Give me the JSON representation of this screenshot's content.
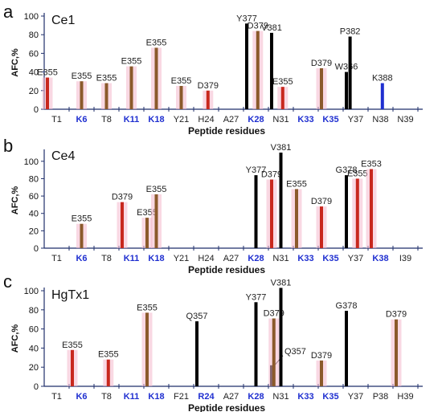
{
  "colors": {
    "brown": "#8b5a2b",
    "red": "#c8281e",
    "black": "#000000",
    "blue": "#1f2fd0",
    "glow": "#f4b8cc",
    "axis": "#1f2f6b",
    "text": "#222222"
  },
  "chart_data": [
    {
      "type": "bar",
      "panel_letter": "a",
      "panel_label": "Ce1",
      "ylabel": "AFC,%",
      "xlabel": "Peptide residues",
      "ylim": [
        0,
        100
      ],
      "yticks": [
        0,
        20,
        40,
        60,
        80,
        100
      ],
      "categories": [
        {
          "label": "T1",
          "lysine": false
        },
        {
          "label": "K6",
          "lysine": true
        },
        {
          "label": "T8",
          "lysine": false
        },
        {
          "label": "K11",
          "lysine": true
        },
        {
          "label": "K18",
          "lysine": true
        },
        {
          "label": "Y21",
          "lysine": false
        },
        {
          "label": "H24",
          "lysine": false
        },
        {
          "label": "A27",
          "lysine": false
        },
        {
          "label": "K28",
          "lysine": true
        },
        {
          "label": "N31",
          "lysine": false
        },
        {
          "label": "K33",
          "lysine": true
        },
        {
          "label": "K35",
          "lysine": true
        },
        {
          "label": "Y37",
          "lysine": false
        },
        {
          "label": "N38",
          "lysine": false
        },
        {
          "label": "N39",
          "lysine": false
        }
      ],
      "bars": [
        {
          "index": 0,
          "offset": 0,
          "value": 34,
          "label": "E355",
          "color": "red"
        },
        {
          "index": 1,
          "offset": 0.5,
          "value": 30,
          "label": "E355",
          "color": "brown"
        },
        {
          "index": 2,
          "offset": 0.5,
          "value": 28,
          "label": "E355",
          "color": "brown"
        },
        {
          "index": 3,
          "offset": 0.5,
          "value": 46,
          "label": "E355",
          "color": "brown"
        },
        {
          "index": 4,
          "offset": 0.5,
          "value": 66,
          "label": "E355",
          "color": "brown"
        },
        {
          "index": 5,
          "offset": 0.5,
          "value": 25,
          "label": "E355",
          "color": "brown"
        },
        {
          "index": 6,
          "offset": 0.6,
          "value": 20,
          "label": "D379",
          "color": "red"
        },
        {
          "index": 8,
          "offset": 0,
          "value": 92,
          "label": "Y377",
          "color": "black"
        },
        {
          "index": 8,
          "offset": 0.6,
          "value": 84,
          "label": "D379",
          "color": "brown"
        },
        {
          "index": 9,
          "offset": 0,
          "value": 82,
          "label": "V381",
          "color": "black"
        },
        {
          "index": 9,
          "offset": 0.6,
          "value": 24,
          "label": "E355",
          "color": "red"
        },
        {
          "index": 11,
          "offset": 0,
          "value": 44,
          "label": "D379",
          "color": "brown"
        },
        {
          "index": 12,
          "offset": 0,
          "value": 40,
          "label": "W366",
          "color": "black"
        },
        {
          "index": 12,
          "offset": 0.2,
          "value": 78,
          "label": "P382",
          "color": "black"
        },
        {
          "index": 13,
          "offset": 0.6,
          "value": 28,
          "label": "K388",
          "color": "blue"
        }
      ]
    },
    {
      "type": "bar",
      "panel_letter": "b",
      "panel_label": "Ce4",
      "ylabel": "AFC,%",
      "xlabel": "Peptide residues",
      "ylim": [
        0,
        110
      ],
      "yticks": [
        0,
        20,
        40,
        60,
        80,
        100
      ],
      "categories": [
        {
          "label": "T1",
          "lysine": false
        },
        {
          "label": "K6",
          "lysine": true
        },
        {
          "label": "T8",
          "lysine": false
        },
        {
          "label": "K11",
          "lysine": true
        },
        {
          "label": "K18",
          "lysine": true
        },
        {
          "label": "Y21",
          "lysine": false
        },
        {
          "label": "H24",
          "lysine": false
        },
        {
          "label": "A27",
          "lysine": false
        },
        {
          "label": "K28",
          "lysine": true
        },
        {
          "label": "N31",
          "lysine": false
        },
        {
          "label": "K33",
          "lysine": true
        },
        {
          "label": "K35",
          "lysine": true
        },
        {
          "label": "Y37",
          "lysine": false
        },
        {
          "label": "K38",
          "lysine": true
        },
        {
          "label": "I39",
          "lysine": false
        }
      ],
      "bars": [
        {
          "index": 1,
          "offset": 0.5,
          "value": 28,
          "label": "E355",
          "color": "brown"
        },
        {
          "index": 3,
          "offset": 0,
          "value": 53,
          "label": "D379",
          "color": "red"
        },
        {
          "index": 4,
          "offset": 0,
          "value": 35,
          "label": "E355",
          "color": "brown"
        },
        {
          "index": 4,
          "offset": 0.5,
          "value": 62,
          "label": "E355",
          "color": "brown"
        },
        {
          "index": 8,
          "offset": 0.5,
          "value": 84,
          "label": "Y377",
          "color": "black"
        },
        {
          "index": 9,
          "offset": 0,
          "value": 79,
          "label": "D379",
          "color": "red"
        },
        {
          "index": 9,
          "offset": 0.5,
          "value": 110,
          "label": "V381",
          "color": "black"
        },
        {
          "index": 10,
          "offset": 0,
          "value": 68,
          "label": "E355",
          "color": "brown"
        },
        {
          "index": 11,
          "offset": 0,
          "value": 48,
          "label": "D379",
          "color": "red"
        },
        {
          "index": 12,
          "offset": 0,
          "value": 84,
          "label": "G378",
          "color": "black"
        },
        {
          "index": 12,
          "offset": 0.6,
          "value": 80,
          "label": "E355",
          "color": "red"
        },
        {
          "index": 13,
          "offset": 0,
          "value": 91,
          "label": "E353",
          "color": "red"
        }
      ]
    },
    {
      "type": "bar",
      "panel_letter": "c",
      "panel_label": "HgTx1",
      "ylabel": "AFC,%",
      "xlabel": "Peptide residues",
      "ylim": [
        0,
        100
      ],
      "yticks": [
        0,
        20,
        40,
        60,
        80,
        100
      ],
      "categories": [
        {
          "label": "T1",
          "lysine": false
        },
        {
          "label": "K6",
          "lysine": true
        },
        {
          "label": "T8",
          "lysine": false
        },
        {
          "label": "K11",
          "lysine": true
        },
        {
          "label": "K18",
          "lysine": true
        },
        {
          "label": "F21",
          "lysine": false
        },
        {
          "label": "R24",
          "lysine": true
        },
        {
          "label": "A27",
          "lysine": false
        },
        {
          "label": "K28",
          "lysine": true
        },
        {
          "label": "N31",
          "lysine": false
        },
        {
          "label": "K33",
          "lysine": true
        },
        {
          "label": "K35",
          "lysine": true
        },
        {
          "label": "Y37",
          "lysine": false
        },
        {
          "label": "P38",
          "lysine": false
        },
        {
          "label": "H39",
          "lysine": false
        }
      ],
      "bars": [
        {
          "index": 1,
          "offset": 0,
          "value": 38,
          "label": "E355",
          "color": "red"
        },
        {
          "index": 2,
          "offset": 0.6,
          "value": 28,
          "label": "E355",
          "color": "red"
        },
        {
          "index": 4,
          "offset": 0,
          "value": 77,
          "label": "E355",
          "color": "brown"
        },
        {
          "index": 6,
          "offset": 0,
          "value": 68,
          "label": "Q357",
          "color": "black"
        },
        {
          "index": 8,
          "offset": 0.5,
          "value": 88,
          "label": "Y377",
          "color": "black"
        },
        {
          "index": 9,
          "offset": 0,
          "value": 22,
          "label": "Q357",
          "color": "black",
          "leader": true
        },
        {
          "index": 9,
          "offset": 0.12,
          "value": 71,
          "label": "D379",
          "color": "brown"
        },
        {
          "index": 9,
          "offset": 0.5,
          "value": 103,
          "label": "V381",
          "color": "black"
        },
        {
          "index": 11,
          "offset": 0,
          "value": 27,
          "label": "D379",
          "color": "brown"
        },
        {
          "index": 12,
          "offset": 0,
          "value": 79,
          "label": "G378",
          "color": "black"
        },
        {
          "index": 14,
          "offset": 0,
          "value": 70,
          "label": "D379",
          "color": "brown"
        }
      ]
    }
  ]
}
